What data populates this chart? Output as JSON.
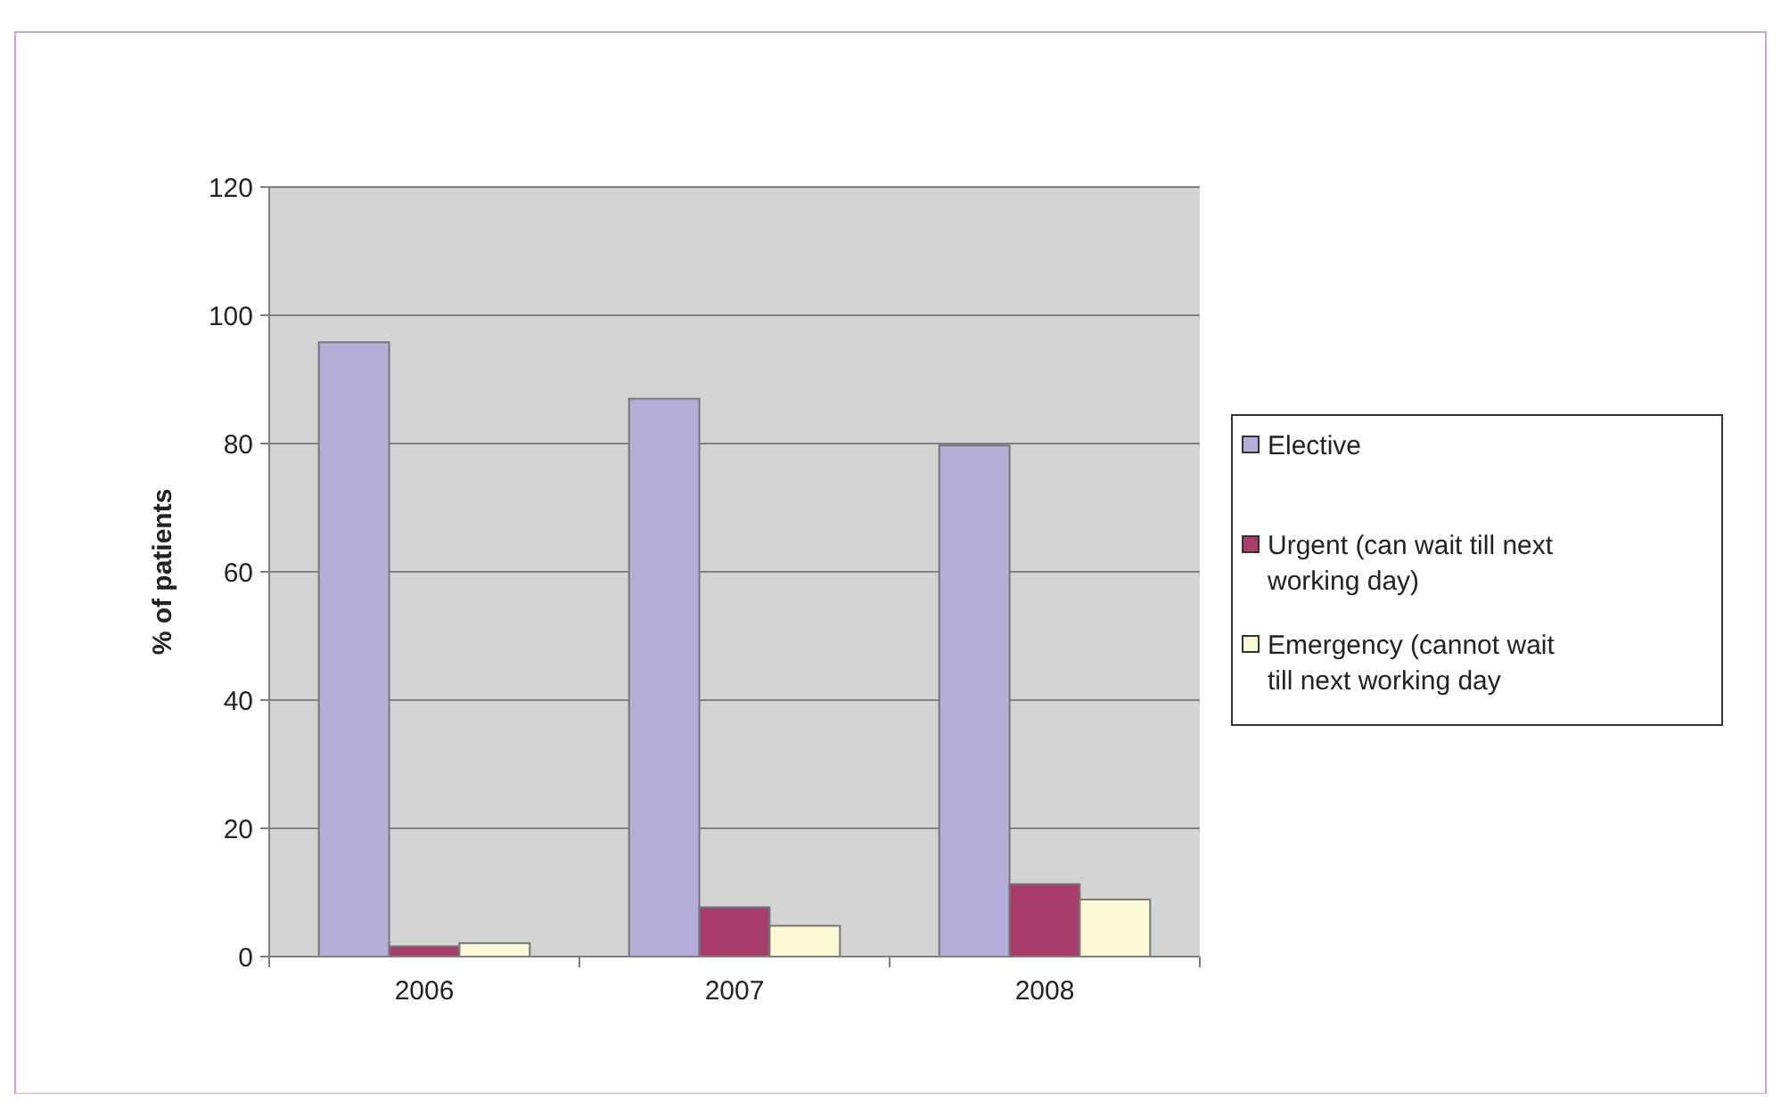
{
  "chart_data": {
    "type": "bar",
    "ylabel": "% of patients",
    "categories": [
      "2006",
      "2007",
      "2008"
    ],
    "series": [
      {
        "name": "Elective",
        "color": "#b3afd8",
        "values": [
          95.8,
          87,
          79.7
        ]
      },
      {
        "name": "Urgent (can wait till next working day)",
        "color": "#a63d6b",
        "values": [
          1.6,
          7.7,
          11.3
        ]
      },
      {
        "name": "Emergency (cannot wait till next working day",
        "color": "#fcfad6",
        "values": [
          2.1,
          4.8,
          8.9
        ]
      }
    ],
    "ylim": [
      0,
      120
    ],
    "yticks": [
      0,
      20,
      40,
      60,
      80,
      100,
      120
    ],
    "grid": "y",
    "legend": "right"
  }
}
